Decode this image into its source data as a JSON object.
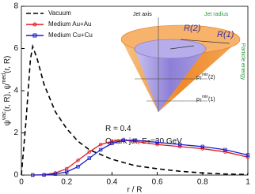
{
  "chart_data": {
    "type": "line",
    "xlabel": "r / R",
    "ylabel": [
      "ψ",
      "vac",
      "(r, R), ψ",
      "med",
      "(r, R)"
    ],
    "xlim": [
      0,
      1
    ],
    "xticks": [
      0,
      0.2,
      0.4,
      0.6,
      0.8,
      1
    ],
    "ylim": [
      0,
      8
    ],
    "yticks": [
      0,
      2,
      4,
      6,
      8
    ],
    "legend": "upper left",
    "annotations": [
      [
        "R = 0.4"
      ],
      [
        "Quark jet, E",
        "T",
        "=30 GeV"
      ]
    ],
    "series": [
      {
        "name": "Vacuum",
        "color": "#000000",
        "dash": true,
        "marker": "none",
        "x": [
          0,
          0.02,
          0.04,
          0.05,
          0.07,
          0.1,
          0.15,
          0.2,
          0.25,
          0.3,
          0.4,
          0.5,
          0.6,
          0.7,
          0.8,
          0.9,
          1.0
        ],
        "values": [
          0,
          2.5,
          5.5,
          6.1,
          5.5,
          4.3,
          3.0,
          2.2,
          1.6,
          1.2,
          0.75,
          0.45,
          0.3,
          0.18,
          0.1,
          0.05,
          0.03
        ]
      },
      {
        "name": "Medium Au+Au",
        "color": "#e0191b",
        "dash": false,
        "marker": "circle",
        "x": [
          0.05,
          0.1,
          0.15,
          0.2,
          0.25,
          0.3,
          0.35,
          0.4,
          0.45,
          0.5,
          0.6,
          0.7,
          0.8,
          0.9,
          1.0
        ],
        "values": [
          0,
          0.02,
          0.1,
          0.3,
          0.7,
          1.1,
          1.45,
          1.6,
          1.65,
          1.6,
          1.45,
          1.35,
          1.25,
          1.1,
          0.85
        ]
      },
      {
        "name": "Medium Cu+Cu",
        "color": "#1a1ad0",
        "dash": false,
        "marker": "square",
        "x": [
          0.05,
          0.1,
          0.15,
          0.2,
          0.25,
          0.3,
          0.35,
          0.4,
          0.45,
          0.5,
          0.6,
          0.7,
          0.8,
          0.9,
          1.0
        ],
        "values": [
          0,
          0.01,
          0.05,
          0.15,
          0.4,
          0.8,
          1.2,
          1.5,
          1.65,
          1.65,
          1.55,
          1.45,
          1.35,
          1.2,
          0.95
        ]
      }
    ]
  },
  "inset": {
    "jet_axis": "Jet axis",
    "jet_radius": "Jet radius",
    "r2": "R(2)",
    "r1": "R(1)",
    "pt2": [
      "p",
      "T",
      "min",
      "(2)"
    ],
    "pt1": [
      "p",
      "T",
      "min",
      "(1)"
    ],
    "particle_energy": "Particle energy"
  }
}
